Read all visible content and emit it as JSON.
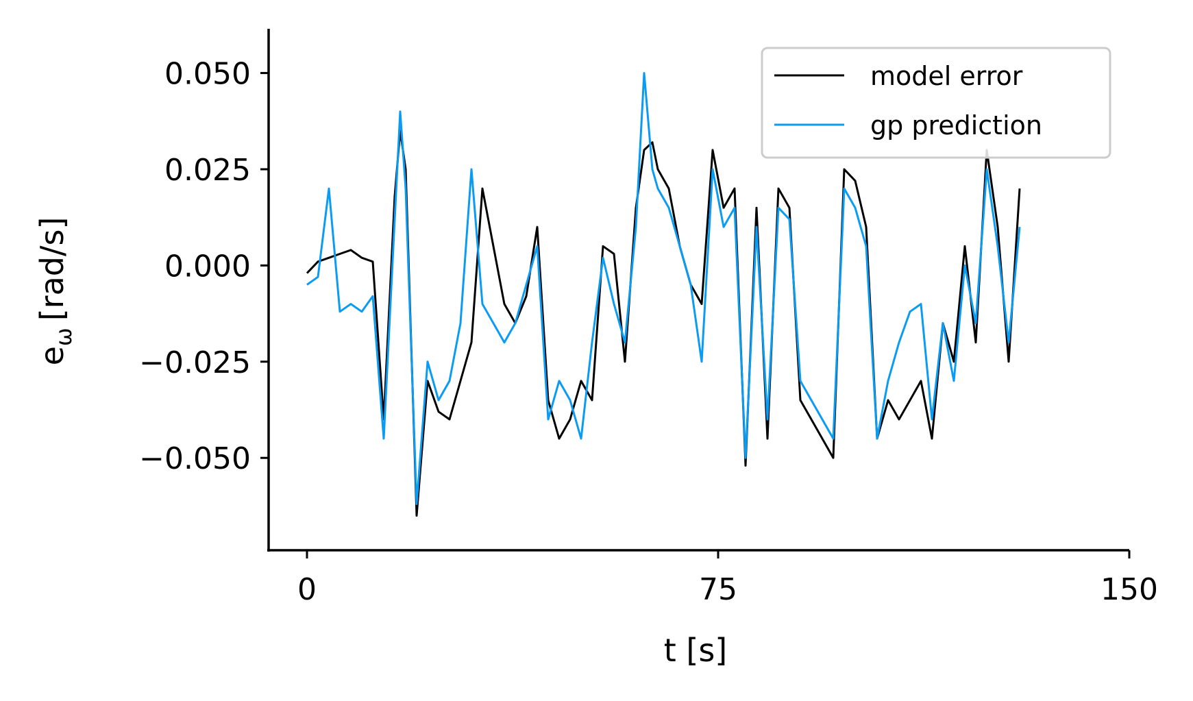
{
  "chart_data": {
    "type": "line",
    "xlabel": "t [s]",
    "ylabel_main": "e",
    "ylabel_sub": "ω",
    "ylabel_units": "[rad/s]",
    "xlim": [
      -7,
      150
    ],
    "ylim": [
      -0.074,
      0.0615
    ],
    "xticks": [
      0,
      75,
      150
    ],
    "xtick_labels": [
      "0",
      "75",
      "150"
    ],
    "yticks": [
      0.05,
      0.025,
      0.0,
      -0.025,
      -0.05
    ],
    "ytick_labels": [
      "0.050",
      "0.025",
      "0.000",
      "−0.025",
      "−0.050"
    ],
    "legend_position": "top-right",
    "grid": false,
    "x": [
      0,
      2,
      4,
      6,
      8,
      10,
      12,
      14,
      16,
      17,
      18,
      20,
      22,
      24,
      26,
      28,
      30,
      32,
      34,
      36,
      38,
      40,
      42,
      44,
      46,
      48,
      50,
      52,
      54,
      56,
      58,
      60,
      61.5,
      63,
      64,
      66,
      68,
      70,
      72,
      74,
      76,
      78,
      80,
      82,
      84,
      86,
      88,
      90,
      92,
      94,
      96,
      98,
      100,
      102,
      104,
      106,
      108,
      110,
      112,
      114,
      116,
      118,
      120,
      122,
      124,
      126,
      128,
      130
    ],
    "series": [
      {
        "name": "model error",
        "color": "#000000",
        "values": [
          -0.002,
          0.001,
          0.002,
          0.003,
          0.004,
          0.002,
          0.001,
          -0.04,
          0.018,
          0.035,
          0.025,
          -0.065,
          -0.03,
          -0.038,
          -0.04,
          -0.03,
          -0.02,
          0.02,
          0.005,
          -0.01,
          -0.015,
          -0.008,
          0.01,
          -0.035,
          -0.045,
          -0.04,
          -0.03,
          -0.035,
          0.005,
          0.003,
          -0.025,
          0.015,
          0.03,
          0.032,
          0.025,
          0.02,
          0.005,
          -0.005,
          -0.01,
          0.03,
          0.015,
          0.02,
          -0.052,
          0.015,
          -0.045,
          0.02,
          0.015,
          -0.035,
          -0.04,
          -0.045,
          -0.05,
          0.025,
          0.022,
          0.01,
          -0.045,
          -0.035,
          -0.04,
          -0.035,
          -0.03,
          -0.045,
          -0.015,
          -0.025,
          0.005,
          -0.02,
          0.03,
          0.01,
          -0.025,
          0.02
        ]
      },
      {
        "name": "gp prediction",
        "color": "#0a9bf2",
        "values": [
          -0.005,
          -0.003,
          0.02,
          -0.012,
          -0.01,
          -0.012,
          -0.008,
          -0.045,
          0.012,
          0.04,
          0.02,
          -0.062,
          -0.025,
          -0.035,
          -0.03,
          -0.015,
          0.025,
          -0.01,
          -0.015,
          -0.02,
          -0.015,
          -0.005,
          0.005,
          -0.04,
          -0.03,
          -0.035,
          -0.045,
          -0.02,
          0.002,
          -0.01,
          -0.02,
          0.01,
          0.05,
          0.025,
          0.02,
          0.015,
          0.005,
          -0.005,
          -0.025,
          0.025,
          0.01,
          0.015,
          -0.05,
          0.01,
          -0.04,
          0.015,
          0.012,
          -0.03,
          -0.035,
          -0.04,
          -0.045,
          0.02,
          0.015,
          0.005,
          -0.045,
          -0.03,
          -0.02,
          -0.012,
          -0.01,
          -0.04,
          -0.015,
          -0.03,
          0.0,
          -0.015,
          0.025,
          0.005,
          -0.02,
          0.01
        ]
      }
    ]
  }
}
